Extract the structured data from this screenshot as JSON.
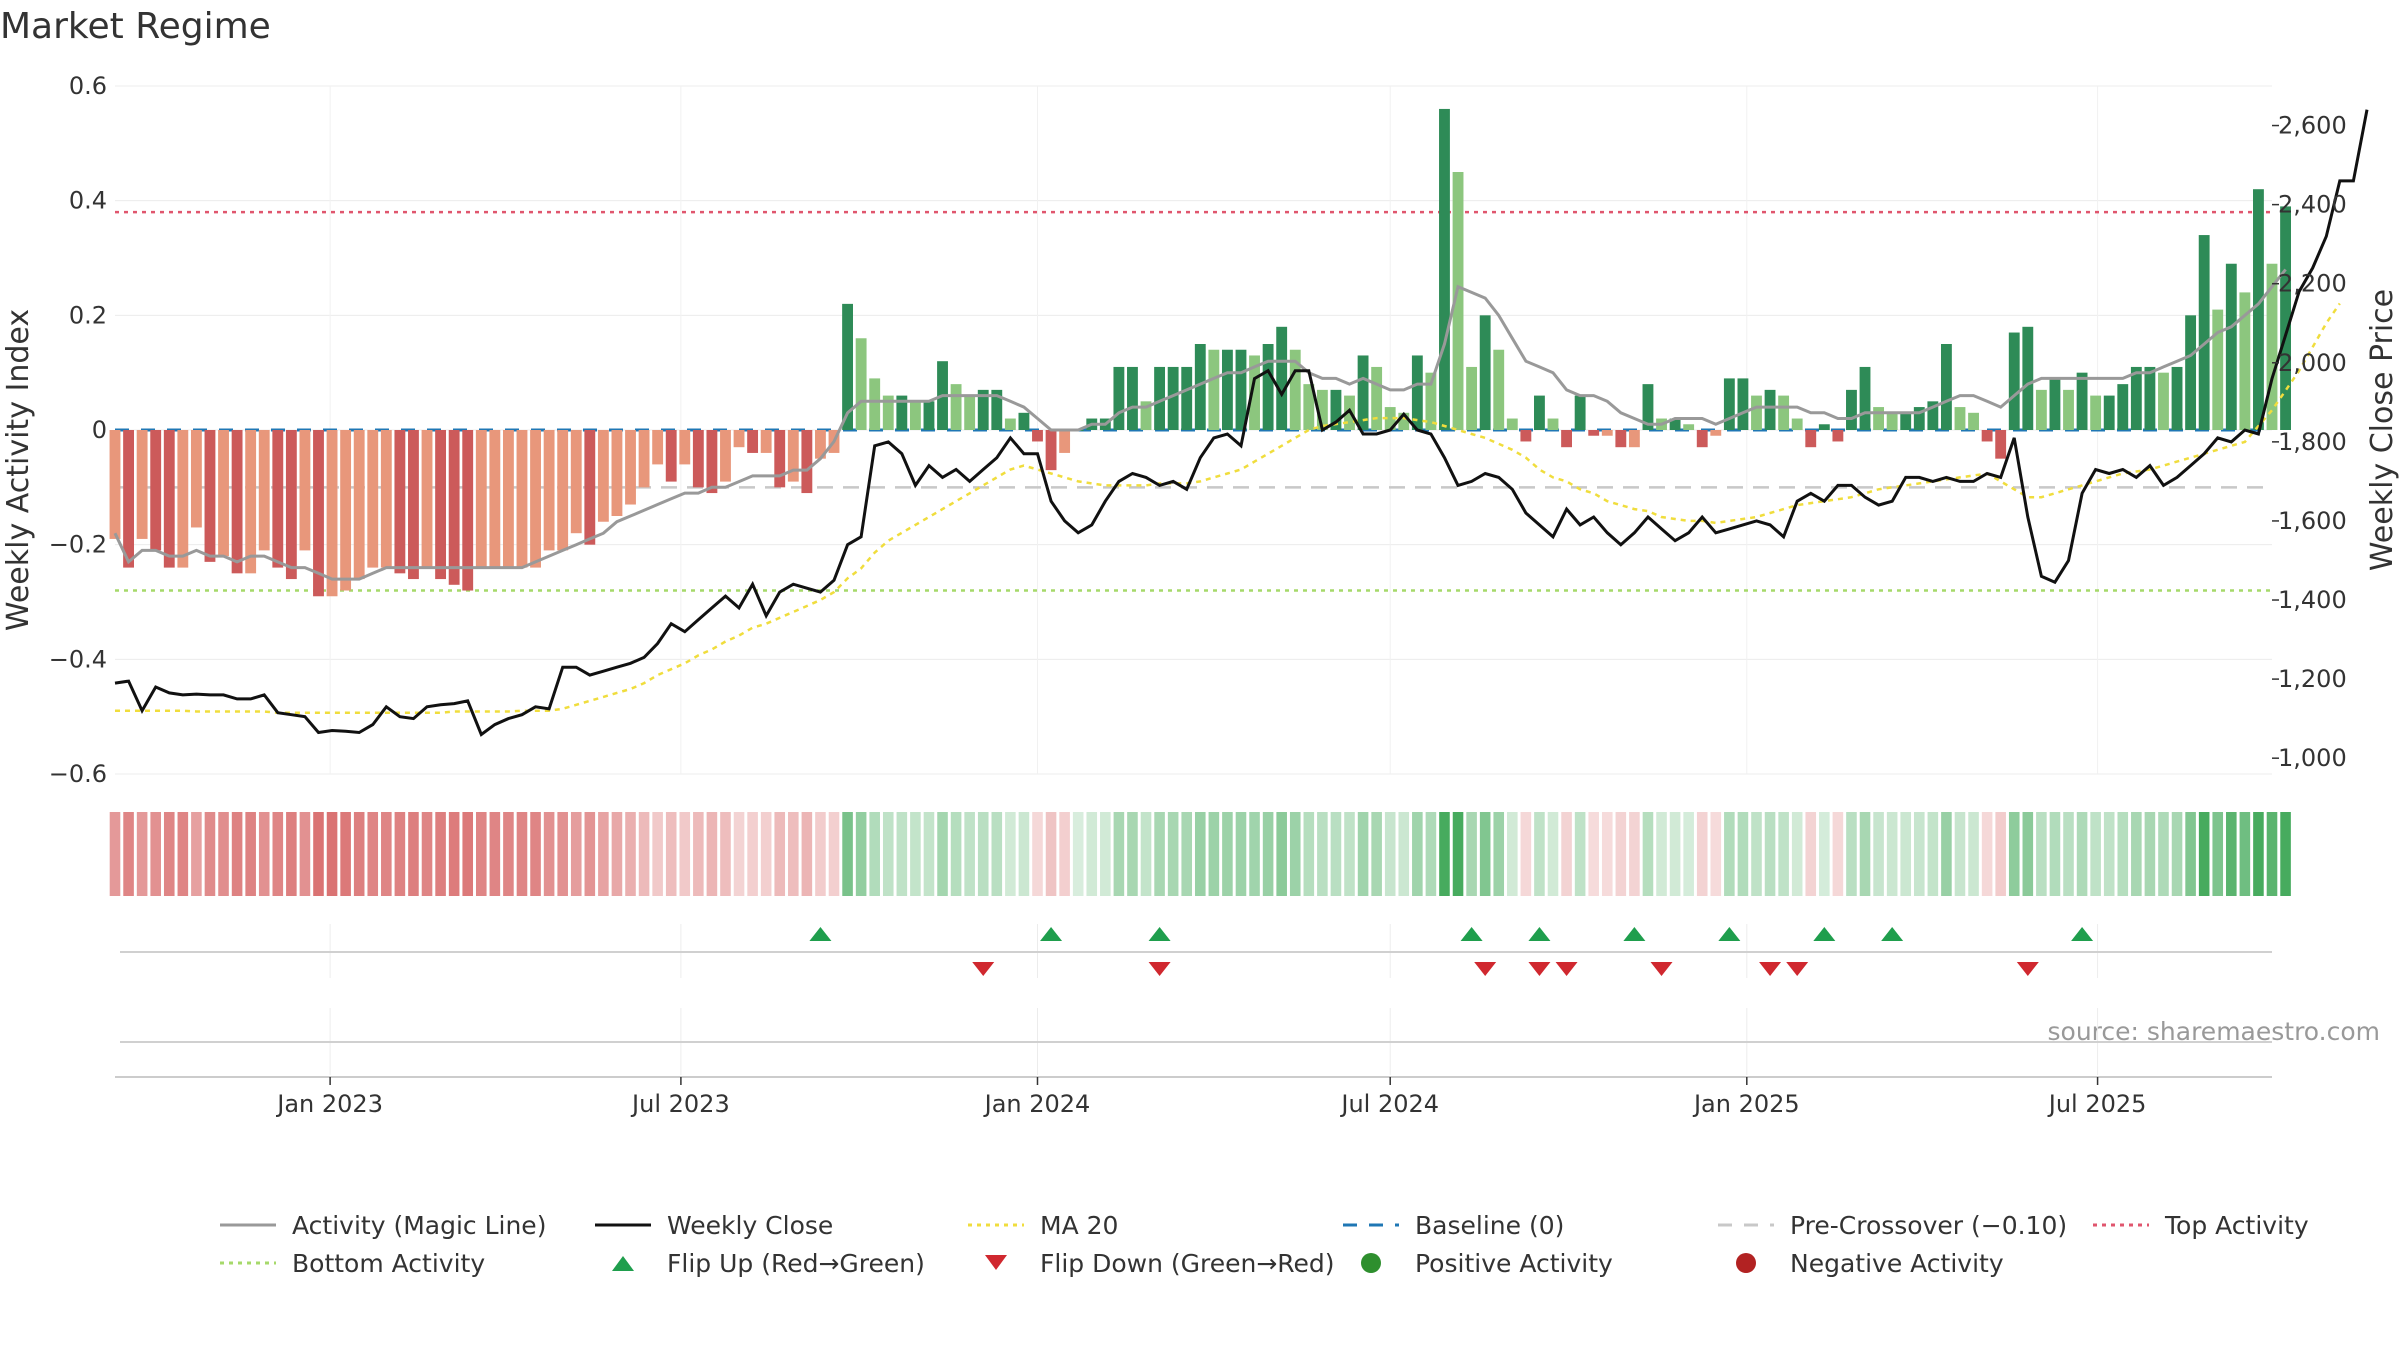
{
  "chart_data": {
    "type": "bar",
    "title": "Market Regime",
    "source": "source: sharemaestro.com",
    "y_left": {
      "label": "Weekly Activity Index",
      "range": [
        -0.6,
        0.6
      ],
      "ticks": [
        -0.6,
        -0.4,
        -0.2,
        0,
        0.2,
        0.4,
        0.6
      ],
      "tick_labels": [
        "−0.6",
        "−0.4",
        "−0.2",
        "0",
        "0.2",
        "0.4",
        "0.6"
      ]
    },
    "y_right": {
      "label": "Weekly Close Price",
      "range": [
        960,
        2700
      ],
      "ticks": [
        1000,
        1200,
        1400,
        1600,
        1800,
        2000,
        2200,
        2400,
        2600
      ],
      "tick_labels": [
        "1,000",
        "1,200",
        "1,400",
        "1,600",
        "1,800",
        "2,000",
        "2,200",
        "2,400",
        "2,600"
      ]
    },
    "x_axis": {
      "range": [
        "2022-09-12",
        "2025-09-29"
      ],
      "ticks": [
        "2023-01-01",
        "2023-07-01",
        "2024-01-01",
        "2024-07-01",
        "2025-01-01",
        "2025-07-01"
      ],
      "tick_labels": [
        "Jan 2023",
        "Jul 2023",
        "Jan 2024",
        "Jul 2024",
        "Jan 2025",
        "Jul 2025"
      ]
    },
    "reference_lines": [
      {
        "name": "Top Activity",
        "value": 0.38,
        "color": "#e0566e",
        "style": "dotted"
      },
      {
        "name": "Bottom Activity",
        "value": -0.28,
        "color": "#a6d96a",
        "style": "dotted"
      },
      {
        "name": "Pre-Crossover (−0.10)",
        "value": -0.1,
        "color": "#c8c8c8",
        "style": "dashed"
      },
      {
        "name": "Baseline (0)",
        "value": 0,
        "color": "#1f77b4",
        "style": "dashed"
      }
    ],
    "start_date": "2022-09-12",
    "interval_days": 7,
    "activity": [
      -0.19,
      -0.24,
      -0.19,
      -0.21,
      -0.24,
      -0.24,
      -0.17,
      -0.23,
      -0.22,
      -0.25,
      -0.25,
      -0.21,
      -0.24,
      -0.26,
      -0.21,
      -0.29,
      -0.29,
      -0.28,
      -0.26,
      -0.24,
      -0.24,
      -0.25,
      -0.26,
      -0.24,
      -0.26,
      -0.27,
      -0.28,
      -0.24,
      -0.24,
      -0.24,
      -0.24,
      -0.24,
      -0.21,
      -0.21,
      -0.18,
      -0.2,
      -0.16,
      -0.15,
      -0.13,
      -0.1,
      -0.06,
      -0.09,
      -0.06,
      -0.1,
      -0.11,
      -0.09,
      -0.03,
      -0.04,
      -0.04,
      -0.1,
      -0.09,
      -0.11,
      -0.05,
      -0.04,
      0.22,
      0.16,
      0.09,
      0.06,
      0.06,
      0.05,
      0.05,
      0.12,
      0.08,
      0.06,
      0.07,
      0.07,
      0.02,
      0.03,
      -0.02,
      -0.07,
      -0.04,
      0.0,
      0.02,
      0.02,
      0.11,
      0.11,
      0.05,
      0.11,
      0.11,
      0.11,
      0.15,
      0.14,
      0.14,
      0.14,
      0.13,
      0.15,
      0.18,
      0.14,
      0.08,
      0.07,
      0.07,
      0.06,
      0.13,
      0.11,
      0.04,
      0.03,
      0.13,
      0.1,
      0.56,
      0.45,
      0.11,
      0.2,
      0.14,
      0.02,
      -0.02,
      0.06,
      0.02,
      -0.03,
      0.06,
      -0.01,
      -0.01,
      -0.03,
      -0.03,
      0.08,
      0.02,
      0.02,
      0.01,
      -0.03,
      -0.01,
      0.09,
      0.09,
      0.06,
      0.07,
      0.06,
      0.02,
      -0.03,
      0.01,
      -0.02,
      0.07,
      0.11,
      0.04,
      0.03,
      0.03,
      0.04,
      0.05,
      0.15,
      0.04,
      0.03,
      -0.02,
      -0.05,
      0.17,
      0.18,
      0.07,
      0.09,
      0.07,
      0.1,
      0.06,
      0.06,
      0.08,
      0.11,
      0.11,
      0.1,
      0.11,
      0.2,
      0.34,
      0.21,
      0.29,
      0.24,
      0.42,
      0.29,
      0.39
    ],
    "magic_line": [
      -0.18,
      -0.23,
      -0.21,
      -0.21,
      -0.22,
      -0.22,
      -0.21,
      -0.22,
      -0.22,
      -0.23,
      -0.22,
      -0.22,
      -0.23,
      -0.24,
      -0.24,
      -0.25,
      -0.26,
      -0.26,
      -0.26,
      -0.25,
      -0.24,
      -0.24,
      -0.24,
      -0.24,
      -0.24,
      -0.24,
      -0.24,
      -0.24,
      -0.24,
      -0.24,
      -0.24,
      -0.23,
      -0.22,
      -0.21,
      -0.2,
      -0.19,
      -0.18,
      -0.16,
      -0.15,
      -0.14,
      -0.13,
      -0.12,
      -0.11,
      -0.11,
      -0.1,
      -0.1,
      -0.09,
      -0.08,
      -0.08,
      -0.08,
      -0.07,
      -0.07,
      -0.05,
      -0.02,
      0.03,
      0.05,
      0.05,
      0.05,
      0.05,
      0.05,
      0.05,
      0.06,
      0.06,
      0.06,
      0.06,
      0.06,
      0.05,
      0.04,
      0.02,
      0.0,
      0.0,
      0.0,
      0.01,
      0.01,
      0.03,
      0.04,
      0.04,
      0.05,
      0.06,
      0.07,
      0.08,
      0.09,
      0.1,
      0.1,
      0.11,
      0.12,
      0.12,
      0.12,
      0.1,
      0.09,
      0.09,
      0.08,
      0.09,
      0.08,
      0.07,
      0.07,
      0.08,
      0.08,
      0.15,
      0.25,
      0.24,
      0.23,
      0.2,
      0.16,
      0.12,
      0.11,
      0.1,
      0.07,
      0.06,
      0.06,
      0.05,
      0.03,
      0.02,
      0.01,
      0.01,
      0.02,
      0.02,
      0.02,
      0.01,
      0.02,
      0.03,
      0.04,
      0.04,
      0.04,
      0.04,
      0.03,
      0.03,
      0.02,
      0.02,
      0.03,
      0.03,
      0.03,
      0.03,
      0.03,
      0.04,
      0.05,
      0.06,
      0.06,
      0.05,
      0.04,
      0.06,
      0.08,
      0.09,
      0.09,
      0.09,
      0.09,
      0.09,
      0.09,
      0.09,
      0.1,
      0.1,
      0.11,
      0.12,
      0.13,
      0.15,
      0.17,
      0.18,
      0.2,
      0.22,
      0.25,
      0.28
    ],
    "weekly_close": [
      1190,
      1195,
      1120,
      1180,
      1165,
      1160,
      1162,
      1160,
      1160,
      1150,
      1150,
      1160,
      1115,
      1110,
      1105,
      1065,
      1070,
      1068,
      1065,
      1085,
      1130,
      1105,
      1100,
      1130,
      1135,
      1138,
      1145,
      1060,
      1085,
      1100,
      1110,
      1130,
      1125,
      1230,
      1230,
      1210,
      1220,
      1230,
      1240,
      1255,
      1290,
      1340,
      1320,
      1350,
      1380,
      1410,
      1380,
      1440,
      1360,
      1420,
      1440,
      1430,
      1420,
      1450,
      1540,
      1560,
      1790,
      1800,
      1770,
      1690,
      1740,
      1710,
      1730,
      1700,
      1730,
      1760,
      1810,
      1770,
      1770,
      1650,
      1600,
      1570,
      1590,
      1650,
      1700,
      1720,
      1710,
      1690,
      1700,
      1680,
      1760,
      1810,
      1820,
      1790,
      1960,
      1980,
      1920,
      1980,
      1980,
      1830,
      1850,
      1880,
      1820,
      1820,
      1830,
      1870,
      1830,
      1820,
      1760,
      1690,
      1700,
      1720,
      1710,
      1680,
      1620,
      1590,
      1560,
      1630,
      1590,
      1610,
      1570,
      1540,
      1570,
      1610,
      1580,
      1550,
      1570,
      1610,
      1570,
      1580,
      1590,
      1600,
      1590,
      1560,
      1650,
      1670,
      1650,
      1690,
      1690,
      1660,
      1640,
      1650,
      1710,
      1710,
      1700,
      1710,
      1700,
      1700,
      1720,
      1710,
      1810,
      1610,
      1460,
      1445,
      1500,
      1670,
      1730,
      1720,
      1730,
      1710,
      1740,
      1690,
      1710,
      1740,
      1770,
      1810,
      1800,
      1830,
      1820,
      1960,
      2070,
      2180,
      2240,
      2320,
      2460,
      2460,
      2640
    ],
    "ma20": [
      1120,
      1120,
      1120,
      1120,
      1120,
      1120,
      1118,
      1118,
      1118,
      1118,
      1118,
      1118,
      1115,
      1115,
      1115,
      1115,
      1115,
      1115,
      1115,
      1115,
      1115,
      1115,
      1115,
      1115,
      1115,
      1118,
      1118,
      1118,
      1118,
      1118,
      1120,
      1120,
      1120,
      1125,
      1135,
      1145,
      1155,
      1165,
      1175,
      1190,
      1210,
      1225,
      1240,
      1260,
      1275,
      1295,
      1310,
      1330,
      1340,
      1355,
      1370,
      1385,
      1400,
      1420,
      1455,
      1480,
      1520,
      1550,
      1570,
      1590,
      1610,
      1630,
      1650,
      1670,
      1690,
      1710,
      1730,
      1740,
      1730,
      1720,
      1710,
      1700,
      1695,
      1690,
      1690,
      1690,
      1690,
      1695,
      1695,
      1695,
      1700,
      1710,
      1720,
      1730,
      1750,
      1770,
      1790,
      1810,
      1830,
      1840,
      1845,
      1850,
      1855,
      1860,
      1860,
      1860,
      1855,
      1850,
      1840,
      1830,
      1820,
      1810,
      1795,
      1780,
      1760,
      1730,
      1710,
      1700,
      1680,
      1670,
      1650,
      1640,
      1630,
      1625,
      1610,
      1605,
      1600,
      1600,
      1595,
      1600,
      1605,
      1610,
      1620,
      1630,
      1640,
      1645,
      1650,
      1655,
      1660,
      1670,
      1680,
      1685,
      1690,
      1695,
      1700,
      1705,
      1710,
      1715,
      1720,
      1700,
      1680,
      1660,
      1660,
      1670,
      1680,
      1690,
      1700,
      1710,
      1720,
      1725,
      1730,
      1740,
      1750,
      1760,
      1770,
      1780,
      1790,
      1800,
      1840,
      1880,
      1930,
      1980,
      2040,
      2100,
      2150
    ],
    "regime_strip": {
      "positive_color": "#3da755",
      "negative_color": "#d45b5b"
    },
    "flips": {
      "up_dates": [
        "2023-09-11",
        "2024-01-08",
        "2024-03-04",
        "2024-08-12",
        "2024-09-16",
        "2024-11-04",
        "2024-12-23",
        "2025-02-10",
        "2025-03-17",
        "2025-06-23"
      ],
      "down_dates": [
        "2023-12-04",
        "2024-03-04",
        "2024-08-19",
        "2024-09-16",
        "2024-09-30",
        "2024-11-18",
        "2025-01-13",
        "2025-01-27",
        "2025-05-26"
      ],
      "up_color": "#1f9e4d",
      "down_color": "#d0282f"
    },
    "colors": {
      "bar_pos_dark": "#2e8b57",
      "bar_pos_light": "#8cc67e",
      "bar_neg_dark": "#cc5a5a",
      "bar_neg_light": "#e8977b",
      "magic_line": "#999999",
      "weekly_close": "#111111",
      "ma20": "#f0dd3d"
    },
    "legend": [
      {
        "key": "magic",
        "label": "Activity (Magic Line)",
        "color": "#999999"
      },
      {
        "key": "close",
        "label": "Weekly Close",
        "color": "#111111"
      },
      {
        "key": "ma20",
        "label": "MA 20",
        "color": "#f0dd3d"
      },
      {
        "key": "baseline",
        "label": "Baseline (0)",
        "color": "#1f77b4"
      },
      {
        "key": "precross",
        "label": "Pre-Crossover (−0.10)",
        "color": "#c8c8c8"
      },
      {
        "key": "top",
        "label": "Top Activity",
        "color": "#e0566e"
      },
      {
        "key": "bottom",
        "label": "Bottom Activity",
        "color": "#a6d96a"
      },
      {
        "key": "flipup",
        "label": "Flip Up (Red→Green)",
        "color": "#1f9e4d"
      },
      {
        "key": "flipdown",
        "label": "Flip Down (Green→Red)",
        "color": "#d0282f"
      },
      {
        "key": "pos",
        "label": "Positive Activity",
        "color": "#2e8f2e"
      },
      {
        "key": "neg",
        "label": "Negative Activity",
        "color": "#b22222"
      }
    ]
  }
}
